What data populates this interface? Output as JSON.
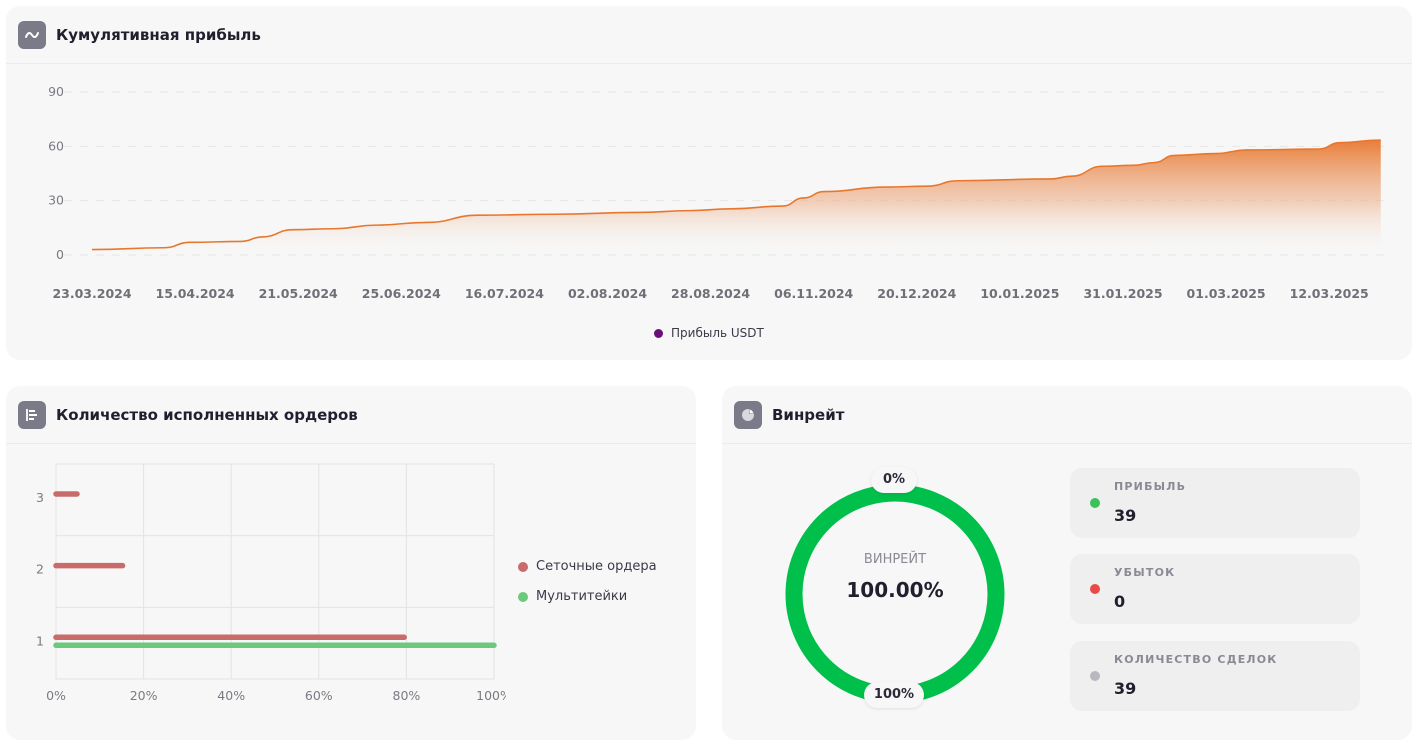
{
  "profit_card": {
    "title": "Кумулятивная прибыль",
    "icon": "line-chart-icon"
  },
  "orders_card": {
    "title": "Количество исполненных ордеров",
    "icon": "bar-list-icon"
  },
  "winrate_card": {
    "title": "Винрейт",
    "icon": "pie-chart-icon",
    "center_label": "ВИНРЕЙТ",
    "center_value": "100.00%",
    "top_pill": "0%",
    "bottom_pill": "100%",
    "ring_color": "#00c04b",
    "stats": [
      {
        "label": "ПРИБЫЛЬ",
        "value": "39",
        "color": "#3cc05a"
      },
      {
        "label": "УБЫТОК",
        "value": "0",
        "color": "#e84a4a"
      },
      {
        "label": "КОЛИЧЕСТВО СДЕЛОК",
        "value": "39",
        "color": "#b8b8bf"
      }
    ]
  },
  "chart_data": [
    {
      "type": "area",
      "title": "Кумулятивная прибыль",
      "xlabel": "",
      "ylabel": "",
      "ylim": [
        0,
        90
      ],
      "yticks": [
        0,
        30,
        60,
        90
      ],
      "x_tick_labels": [
        "23.03.2024",
        "15.04.2024",
        "21.05.2024",
        "25.06.2024",
        "16.07.2024",
        "02.08.2024",
        "28.08.2024",
        "06.11.2024",
        "20.12.2024",
        "10.01.2025",
        "31.01.2025",
        "01.03.2025",
        "12.03.2025"
      ],
      "grid": true,
      "legend": {
        "position": "bottom-center",
        "entries": [
          {
            "name": "Прибыль USDT",
            "color": "#6a0f7a"
          }
        ]
      },
      "series": [
        {
          "name": "Прибыль USDT",
          "color": "#e8772e",
          "x_index": [
            0,
            0.7,
            0.95,
            1.45,
            1.65,
            1.95,
            2.35,
            2.75,
            3.25,
            3.75,
            4.5,
            5.3,
            5.8,
            6.2,
            6.7,
            6.9,
            7.1,
            7.7,
            8.1,
            8.4,
            9.3,
            9.5,
            9.8,
            10.1,
            10.3,
            10.5,
            10.9,
            11.2,
            11.9,
            12.1,
            12.5
          ],
          "values": [
            3,
            4,
            7,
            7.5,
            10,
            14,
            14.5,
            16.5,
            18,
            22,
            22.5,
            23.5,
            24.5,
            25.5,
            27,
            31.5,
            35,
            37.5,
            38,
            41,
            42,
            43.5,
            49,
            49.5,
            51,
            55,
            56,
            58,
            58.5,
            62,
            63.5
          ]
        }
      ]
    },
    {
      "type": "bar",
      "orientation": "horizontal",
      "title": "Количество исполненных ордеров",
      "categories": [
        "1",
        "2",
        "3"
      ],
      "xlim": [
        0,
        100
      ],
      "x_tick_labels": [
        "0%",
        "20%",
        "40%",
        "60%",
        "80%",
        "100%"
      ],
      "grid": true,
      "legend": {
        "position": "right"
      },
      "series": [
        {
          "name": "Сеточные ордера",
          "color": "#c96b6b",
          "values": [
            79.5,
            15.2,
            4.8
          ]
        },
        {
          "name": "Мультитейки",
          "color": "#6cc97c",
          "values": [
            100,
            null,
            null
          ]
        }
      ]
    },
    {
      "type": "pie",
      "title": "Винрейт",
      "labels": [
        "Прибыль",
        "Убыток"
      ],
      "values": [
        100,
        0
      ],
      "colors": [
        "#00c04b",
        "#e84a4a"
      ]
    }
  ]
}
